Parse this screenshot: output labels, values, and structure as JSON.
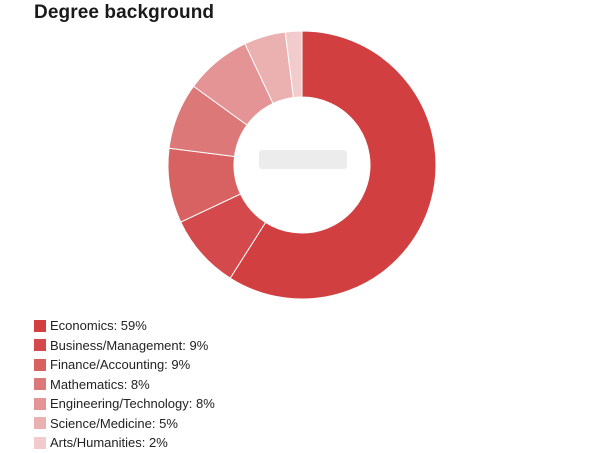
{
  "chart_data": {
    "type": "pie",
    "variant": "donut",
    "title": "Degree background",
    "categories": [
      "Economics",
      "Business/Management",
      "Finance/Accounting",
      "Mathematics",
      "Engineering/Technology",
      "Science/Medicine",
      "Arts/Humanities"
    ],
    "values": [
      59,
      9,
      9,
      8,
      8,
      5,
      2
    ],
    "unit": "%",
    "colors": [
      "#d13f41",
      "#d4494b",
      "#d86262",
      "#dd7878",
      "#e49494",
      "#ebb0b0",
      "#f2cccc"
    ],
    "legend_labels": [
      "Economics: 59%",
      "Business/Management: 9%",
      "Finance/Accounting: 9%",
      "Mathematics: 8%",
      "Engineering/Technology: 8%",
      "Science/Medicine: 5%",
      "Arts/Humanities: 2%"
    ],
    "legend_position": "bottom-left"
  }
}
